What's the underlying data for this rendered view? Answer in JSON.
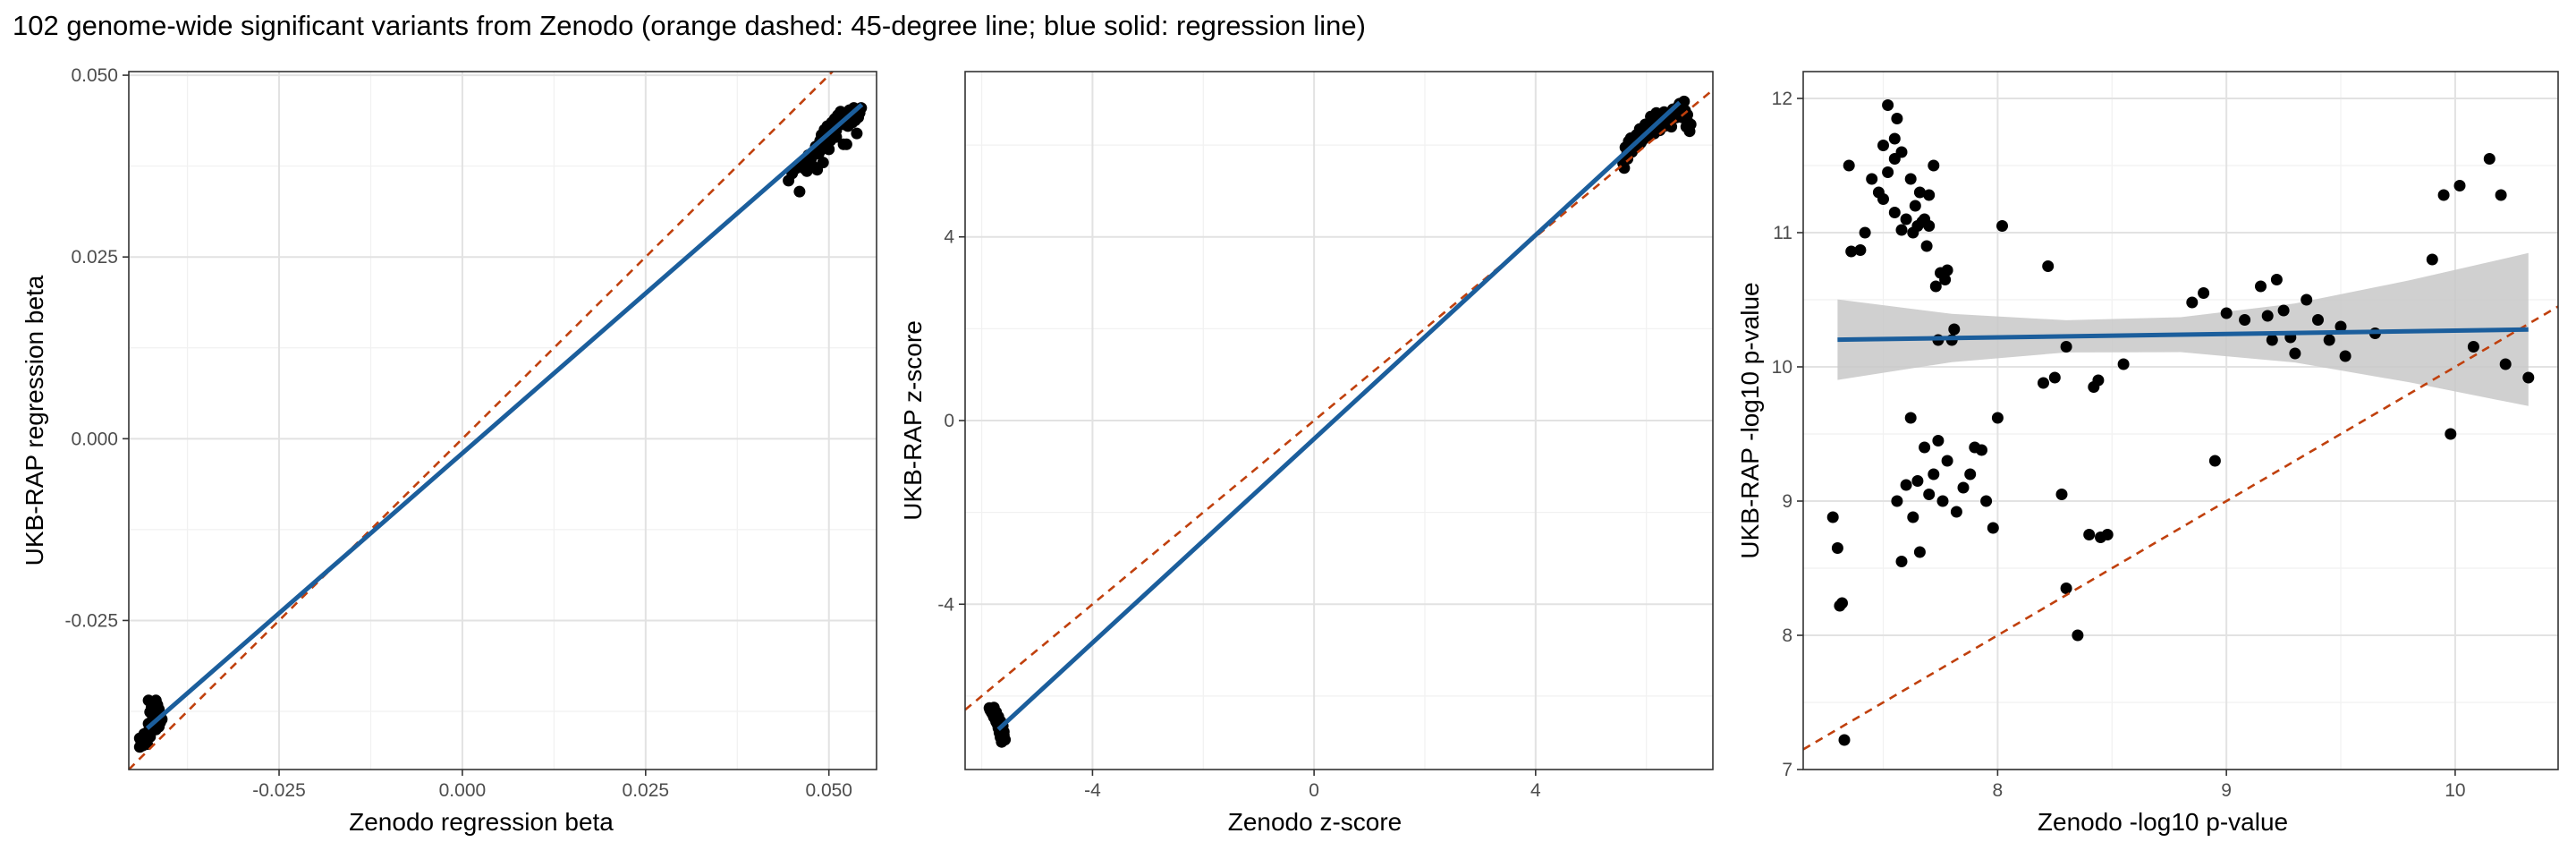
{
  "figure": {
    "title": "102 genome-wide significant variants from Zenodo (orange dashed: 45-degree line; blue solid: regression line)"
  },
  "colors": {
    "points": "#000000",
    "identity_line": "#c0400d",
    "regression_line": "#1b5e9c",
    "confidence_band": "#c8c8c8",
    "grid_major": "#e2e2e2",
    "grid_minor": "#f1f1f1",
    "panel_border": "#333333"
  },
  "chart_data": [
    {
      "type": "scatter",
      "xlabel": "Zenodo regression beta",
      "ylabel": "UKB-RAP regression beta",
      "xlim": [
        -0.0455,
        0.0565
      ],
      "ylim": [
        -0.0455,
        0.0505
      ],
      "xticks": [
        -0.025,
        0.0,
        0.025,
        0.05
      ],
      "xtick_labels": [
        "-0.025",
        "0.000",
        "0.025",
        "0.050"
      ],
      "yticks": [
        -0.025,
        0.0,
        0.025,
        0.05
      ],
      "ytick_labels": [
        "-0.025",
        "0.000",
        "0.025",
        "0.050"
      ],
      "grid": true,
      "identity_line": true,
      "regression": {
        "slope": 0.88,
        "intercept": -0.002,
        "x_range": [
          -0.043,
          0.0545
        ],
        "ci": false
      },
      "points": [
        [
          -0.0438,
          -0.0418
        ],
        [
          -0.0436,
          -0.0422
        ],
        [
          -0.0434,
          -0.0414
        ],
        [
          -0.0432,
          -0.041
        ],
        [
          -0.043,
          -0.0406
        ],
        [
          -0.0428,
          -0.0402
        ],
        [
          -0.0426,
          -0.0398
        ],
        [
          -0.0424,
          -0.0395
        ],
        [
          -0.0424,
          -0.039
        ],
        [
          -0.0422,
          -0.0385
        ],
        [
          -0.0426,
          -0.0376
        ],
        [
          -0.0424,
          -0.037
        ],
        [
          -0.042,
          -0.0365
        ],
        [
          -0.0424,
          -0.0362
        ],
        [
          -0.0428,
          -0.036
        ],
        [
          -0.0418,
          -0.036
        ],
        [
          -0.0416,
          -0.0366
        ],
        [
          -0.0414,
          -0.0372
        ],
        [
          -0.0412,
          -0.038
        ],
        [
          -0.041,
          -0.0386
        ],
        [
          -0.042,
          -0.0394
        ],
        [
          -0.0418,
          -0.04
        ],
        [
          -0.044,
          -0.0412
        ],
        [
          -0.0436,
          -0.0416
        ],
        [
          -0.0432,
          -0.0408
        ],
        [
          -0.0428,
          -0.0404
        ],
        [
          -0.0422,
          -0.0382
        ],
        [
          -0.0416,
          -0.0392
        ],
        [
          -0.0414,
          -0.0396
        ],
        [
          -0.043,
          -0.042
        ],
        [
          -0.0434,
          -0.0406
        ],
        [
          -0.0426,
          -0.041
        ],
        [
          -0.042,
          -0.0374
        ],
        [
          -0.0418,
          -0.0378
        ],
        [
          -0.0412,
          -0.039
        ],
        [
          -0.044,
          -0.0424
        ],
        [
          -0.0422,
          -0.0366
        ],
        [
          -0.0416,
          -0.037
        ],
        [
          -0.0424,
          -0.04
        ],
        [
          -0.0428,
          -0.0392
        ],
        [
          0.0445,
          0.0355
        ],
        [
          0.045,
          0.0365
        ],
        [
          0.0455,
          0.0372
        ],
        [
          0.046,
          0.034
        ],
        [
          0.0462,
          0.0378
        ],
        [
          0.0468,
          0.0382
        ],
        [
          0.0472,
          0.039
        ],
        [
          0.0476,
          0.0386
        ],
        [
          0.048,
          0.0395
        ],
        [
          0.0484,
          0.037
        ],
        [
          0.0486,
          0.0392
        ],
        [
          0.0488,
          0.041
        ],
        [
          0.049,
          0.0418
        ],
        [
          0.0492,
          0.038
        ],
        [
          0.0494,
          0.0425
        ],
        [
          0.0496,
          0.04
        ],
        [
          0.0498,
          0.043
        ],
        [
          0.05,
          0.0422
        ],
        [
          0.0502,
          0.041
        ],
        [
          0.0504,
          0.0435
        ],
        [
          0.0506,
          0.0428
        ],
        [
          0.0508,
          0.044
        ],
        [
          0.051,
          0.0415
        ],
        [
          0.0512,
          0.0445
        ],
        [
          0.0514,
          0.0438
        ],
        [
          0.0516,
          0.045
        ],
        [
          0.0518,
          0.0442
        ],
        [
          0.052,
          0.0405
        ],
        [
          0.0522,
          0.0432
        ],
        [
          0.0524,
          0.0448
        ],
        [
          0.0526,
          0.043
        ],
        [
          0.0528,
          0.0452
        ],
        [
          0.053,
          0.044
        ],
        [
          0.0532,
          0.0435
        ],
        [
          0.0534,
          0.0455
        ],
        [
          0.0536,
          0.0445
        ],
        [
          0.0538,
          0.042
        ],
        [
          0.054,
          0.045
        ],
        [
          0.0542,
          0.0448
        ],
        [
          0.0544,
          0.0455
        ],
        [
          0.0496,
          0.0412
        ],
        [
          0.05,
          0.0398
        ],
        [
          0.0504,
          0.042
        ],
        [
          0.0508,
          0.0426
        ],
        [
          0.0512,
          0.043
        ],
        [
          0.0516,
          0.0436
        ],
        [
          0.0482,
          0.0402
        ],
        [
          0.0478,
          0.0375
        ],
        [
          0.047,
          0.0368
        ],
        [
          0.0466,
          0.0372
        ],
        [
          0.052,
          0.044
        ],
        [
          0.0524,
          0.0405
        ],
        [
          0.0528,
          0.0444
        ],
        [
          0.0532,
          0.0448
        ],
        [
          0.0536,
          0.0438
        ],
        [
          0.054,
          0.0442
        ],
        [
          0.0488,
          0.0396
        ],
        [
          0.0492,
          0.0406
        ],
        [
          0.0498,
          0.0414
        ],
        [
          0.0502,
          0.0418
        ],
        [
          0.051,
          0.0424
        ],
        [
          0.0514,
          0.0434
        ]
      ]
    },
    {
      "type": "scatter",
      "xlabel": "Zenodo z-score",
      "ylabel": "UKB-RAP z-score",
      "xlim": [
        -6.3,
        7.2
      ],
      "ylim": [
        -7.6,
        7.6
      ],
      "xticks": [
        -4,
        0,
        4
      ],
      "xtick_labels": [
        "-4",
        "0",
        "4"
      ],
      "yticks": [
        -4,
        0,
        4
      ],
      "ytick_labels": [
        "-4",
        "0",
        "4"
      ],
      "grid": true,
      "identity_line": true,
      "regression": {
        "slope": 1.11,
        "intercept": -0.4,
        "x_range": [
          -5.7,
          6.6
        ],
        "ci": false
      },
      "points": [
        [
          -5.85,
          -6.3
        ],
        [
          -5.8,
          -6.4
        ],
        [
          -5.75,
          -6.5
        ],
        [
          -5.72,
          -6.6
        ],
        [
          -5.7,
          -6.7
        ],
        [
          -5.68,
          -6.8
        ],
        [
          -5.66,
          -6.9
        ],
        [
          -5.64,
          -7.0
        ],
        [
          -5.62,
          -6.75
        ],
        [
          -5.6,
          -6.85
        ],
        [
          -5.78,
          -6.25
        ],
        [
          -5.74,
          -6.35
        ],
        [
          -5.7,
          -6.45
        ],
        [
          -5.66,
          -6.55
        ],
        [
          -5.62,
          -6.65
        ],
        [
          -5.58,
          -6.95
        ],
        [
          -5.82,
          -6.28
        ],
        [
          -5.76,
          -6.42
        ],
        [
          -5.72,
          -6.58
        ],
        [
          -5.68,
          -6.62
        ],
        [
          -5.64,
          -6.72
        ],
        [
          -5.6,
          -6.78
        ],
        [
          -5.84,
          -6.32
        ],
        [
          -5.8,
          -6.38
        ],
        [
          -5.76,
          -6.48
        ],
        [
          -5.72,
          -6.52
        ],
        [
          -5.68,
          -6.68
        ],
        [
          -5.64,
          -6.82
        ],
        [
          -5.78,
          -6.44
        ],
        [
          -5.74,
          -6.56
        ],
        [
          -5.7,
          -6.64
        ],
        [
          -5.66,
          -6.74
        ],
        [
          -5.62,
          -6.88
        ],
        [
          -5.86,
          -6.26
        ],
        [
          -5.82,
          -6.36
        ],
        [
          -5.78,
          -6.46
        ],
        [
          -5.74,
          -6.54
        ],
        [
          -5.7,
          -6.66
        ],
        [
          -5.66,
          -6.76
        ],
        [
          -5.6,
          -6.92
        ],
        [
          5.6,
          5.5
        ],
        [
          5.65,
          5.8
        ],
        [
          5.7,
          6.0
        ],
        [
          5.75,
          5.9
        ],
        [
          5.8,
          6.1
        ],
        [
          5.85,
          6.2
        ],
        [
          5.9,
          6.05
        ],
        [
          5.95,
          6.25
        ],
        [
          6.0,
          6.4
        ],
        [
          6.05,
          6.3
        ],
        [
          6.1,
          6.5
        ],
        [
          6.15,
          6.35
        ],
        [
          6.2,
          6.55
        ],
        [
          6.25,
          6.45
        ],
        [
          6.3,
          6.6
        ],
        [
          6.35,
          6.5
        ],
        [
          6.4,
          6.7
        ],
        [
          6.45,
          6.4
        ],
        [
          6.5,
          6.65
        ],
        [
          6.55,
          6.8
        ],
        [
          6.6,
          6.9
        ],
        [
          6.65,
          6.6
        ],
        [
          6.7,
          6.75
        ],
        [
          6.75,
          6.5
        ],
        [
          5.62,
          5.95
        ],
        [
          5.68,
          6.08
        ],
        [
          5.72,
          6.15
        ],
        [
          5.78,
          6.02
        ],
        [
          5.82,
          6.22
        ],
        [
          5.88,
          6.35
        ],
        [
          5.92,
          6.18
        ],
        [
          5.98,
          6.45
        ],
        [
          6.02,
          6.28
        ],
        [
          6.08,
          6.62
        ],
        [
          6.12,
          6.42
        ],
        [
          6.18,
          6.7
        ],
        [
          6.22,
          6.38
        ],
        [
          6.28,
          6.52
        ],
        [
          6.32,
          6.72
        ],
        [
          6.38,
          6.58
        ],
        [
          6.42,
          6.48
        ],
        [
          6.48,
          6.78
        ],
        [
          6.52,
          6.62
        ],
        [
          6.58,
          6.85
        ],
        [
          6.62,
          6.7
        ],
        [
          6.68,
          6.95
        ],
        [
          6.72,
          6.4
        ],
        [
          6.78,
          6.3
        ],
        [
          5.66,
          5.7
        ],
        [
          5.74,
          5.85
        ],
        [
          5.84,
          6.0
        ],
        [
          5.94,
          6.12
        ],
        [
          6.04,
          6.2
        ],
        [
          6.14,
          6.25
        ],
        [
          6.24,
          6.32
        ],
        [
          6.34,
          6.42
        ],
        [
          6.44,
          6.55
        ],
        [
          6.54,
          6.6
        ],
        [
          6.64,
          6.78
        ],
        [
          6.74,
          6.66
        ],
        [
          5.58,
          5.6
        ],
        [
          6.8,
          6.45
        ]
      ]
    },
    {
      "type": "scatter",
      "xlabel": "Zenodo -log10 p-value",
      "ylabel": "UKB-RAP -log10 p-value",
      "xlim": [
        7.15,
        10.45
      ],
      "ylim": [
        7.0,
        12.2
      ],
      "xticks": [
        8,
        9,
        10
      ],
      "xtick_labels": [
        "8",
        "9",
        "10"
      ],
      "yticks": [
        7,
        8,
        9,
        10,
        11,
        12
      ],
      "ytick_labels": [
        "7",
        "8",
        "9",
        "10",
        "11",
        "12"
      ],
      "grid": true,
      "identity_line": true,
      "regression": {
        "slope": 0.025,
        "intercept": 10.02,
        "x_range": [
          7.3,
          10.32
        ],
        "ci": true,
        "ci_half_width": [
          [
            7.3,
            0.3
          ],
          [
            7.8,
            0.18
          ],
          [
            8.3,
            0.12
          ],
          [
            8.8,
            0.13
          ],
          [
            9.3,
            0.22
          ],
          [
            9.8,
            0.38
          ],
          [
            10.32,
            0.57
          ]
        ]
      },
      "points": [
        [
          7.28,
          8.88
        ],
        [
          7.3,
          8.65
        ],
        [
          7.31,
          8.22
        ],
        [
          7.32,
          8.24
        ],
        [
          7.33,
          7.22
        ],
        [
          7.35,
          11.5
        ],
        [
          7.36,
          10.86
        ],
        [
          7.4,
          10.87
        ],
        [
          7.42,
          11.0
        ],
        [
          7.45,
          11.4
        ],
        [
          7.48,
          11.3
        ],
        [
          7.5,
          11.65
        ],
        [
          7.52,
          11.95
        ],
        [
          7.55,
          11.7
        ],
        [
          7.56,
          11.85
        ],
        [
          7.58,
          11.6
        ],
        [
          7.5,
          11.25
        ],
        [
          7.55,
          11.55
        ],
        [
          7.6,
          11.1
        ],
        [
          7.62,
          11.4
        ],
        [
          7.64,
          11.2
        ],
        [
          7.65,
          11.05
        ],
        [
          7.66,
          11.3
        ],
        [
          7.68,
          11.1
        ],
        [
          7.7,
          11.05
        ],
        [
          7.72,
          11.5
        ],
        [
          7.55,
          11.15
        ],
        [
          7.52,
          11.45
        ],
        [
          7.58,
          11.02
        ],
        [
          7.63,
          11.0
        ],
        [
          7.67,
          11.08
        ],
        [
          7.69,
          10.9
        ],
        [
          7.7,
          11.28
        ],
        [
          7.73,
          10.6
        ],
        [
          7.75,
          10.7
        ],
        [
          7.77,
          10.65
        ],
        [
          7.8,
          10.2
        ],
        [
          7.81,
          10.28
        ],
        [
          7.78,
          10.72
        ],
        [
          7.74,
          10.2
        ],
        [
          7.62,
          9.62
        ],
        [
          7.65,
          9.15
        ],
        [
          7.68,
          9.4
        ],
        [
          7.7,
          9.05
        ],
        [
          7.72,
          9.2
        ],
        [
          7.74,
          9.45
        ],
        [
          7.76,
          9.0
        ],
        [
          7.78,
          9.3
        ],
        [
          7.6,
          9.12
        ],
        [
          7.63,
          8.88
        ],
        [
          7.66,
          8.62
        ],
        [
          7.58,
          8.55
        ],
        [
          7.56,
          9.0
        ],
        [
          7.82,
          8.92
        ],
        [
          7.85,
          9.1
        ],
        [
          7.88,
          9.2
        ],
        [
          7.9,
          9.4
        ],
        [
          7.93,
          9.38
        ],
        [
          7.95,
          9.0
        ],
        [
          7.98,
          8.8
        ],
        [
          8.0,
          9.62
        ],
        [
          8.02,
          11.05
        ],
        [
          8.22,
          10.75
        ],
        [
          8.2,
          9.88
        ],
        [
          8.25,
          9.92
        ],
        [
          8.3,
          10.15
        ],
        [
          8.28,
          9.05
        ],
        [
          8.3,
          8.35
        ],
        [
          8.35,
          8.0
        ],
        [
          8.4,
          8.75
        ],
        [
          8.42,
          9.85
        ],
        [
          8.44,
          9.9
        ],
        [
          8.45,
          8.73
        ],
        [
          8.48,
          8.75
        ],
        [
          8.55,
          10.02
        ],
        [
          8.85,
          10.48
        ],
        [
          8.9,
          10.55
        ],
        [
          8.95,
          9.3
        ],
        [
          9.0,
          10.4
        ],
        [
          9.08,
          10.35
        ],
        [
          9.15,
          10.6
        ],
        [
          9.2,
          10.2
        ],
        [
          9.22,
          10.65
        ],
        [
          9.25,
          10.42
        ],
        [
          9.3,
          10.1
        ],
        [
          9.35,
          10.5
        ],
        [
          9.4,
          10.35
        ],
        [
          9.45,
          10.2
        ],
        [
          9.5,
          10.3
        ],
        [
          9.52,
          10.08
        ],
        [
          9.65,
          10.25
        ],
        [
          9.9,
          10.8
        ],
        [
          9.95,
          11.28
        ],
        [
          9.98,
          9.5
        ],
        [
          10.02,
          11.35
        ],
        [
          10.08,
          10.15
        ],
        [
          10.15,
          11.55
        ],
        [
          10.2,
          11.28
        ],
        [
          10.22,
          10.02
        ],
        [
          10.32,
          9.92
        ],
        [
          9.18,
          10.38
        ],
        [
          9.28,
          10.22
        ]
      ]
    }
  ]
}
